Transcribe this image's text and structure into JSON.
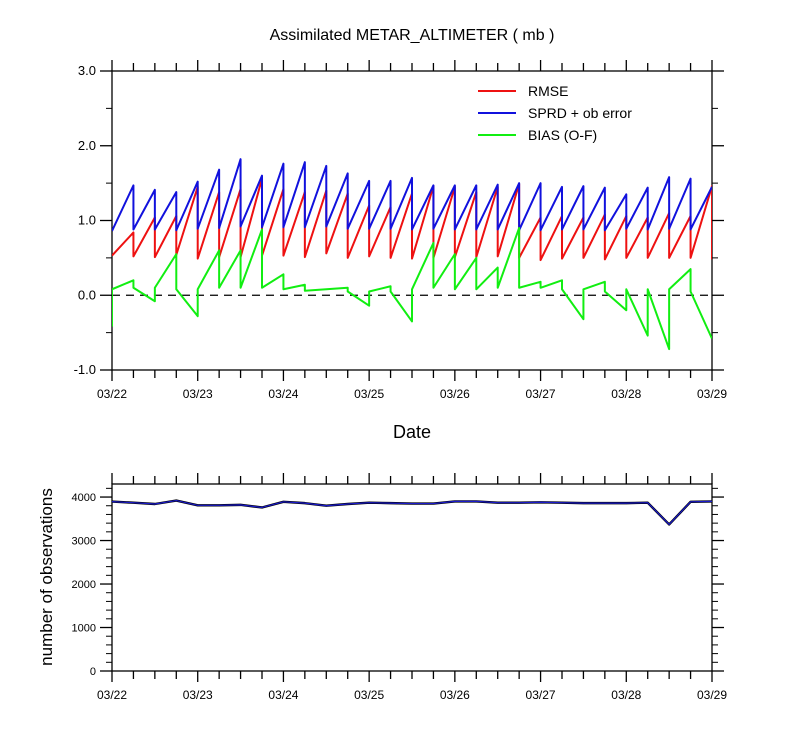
{
  "chart_data": [
    {
      "type": "line",
      "title": "Assimilated METAR_ALTIMETER ( mb )",
      "xlabel": "Date",
      "ylabel": "",
      "x_tick_labels": [
        "03/22",
        "03/23",
        "03/24",
        "03/25",
        "03/26",
        "03/27",
        "03/28",
        "03/29"
      ],
      "y_tick_labels": [
        "3.0",
        "2.0",
        "1.0",
        "0.0",
        "-1.0"
      ],
      "ylim": [
        -1.0,
        3.0
      ],
      "xlim": [
        0,
        7
      ],
      "legend_position": "top-right",
      "zero_line": "dashed",
      "series": [
        {
          "name": "RMSE",
          "color": "#ee1111",
          "x": [
            0.0,
            0.25,
            0.25,
            0.5,
            0.5,
            0.75,
            0.75,
            1.0,
            1.0,
            1.25,
            1.25,
            1.5,
            1.5,
            1.75,
            1.75,
            2.0,
            2.0,
            2.25,
            2.25,
            2.5,
            2.5,
            2.75,
            2.75,
            3.0,
            3.0,
            3.25,
            3.25,
            3.5,
            3.5,
            3.75,
            3.75,
            4.0,
            4.0,
            4.25,
            4.25,
            4.5,
            4.5,
            4.75,
            4.75,
            5.0,
            5.0,
            5.25,
            5.25,
            5.5,
            5.5,
            5.75,
            5.75,
            6.0,
            6.0,
            6.25,
            6.25,
            6.5,
            6.5,
            6.75,
            6.75,
            7.0,
            7.0
          ],
          "y": [
            0.53,
            0.84,
            0.52,
            1.04,
            0.51,
            1.06,
            0.54,
            1.45,
            0.49,
            1.38,
            0.51,
            1.42,
            0.51,
            1.56,
            0.53,
            1.42,
            0.53,
            1.38,
            0.51,
            1.4,
            0.56,
            1.36,
            0.5,
            1.2,
            0.52,
            1.18,
            0.5,
            1.36,
            0.49,
            1.46,
            0.5,
            1.45,
            0.51,
            1.38,
            0.51,
            1.45,
            0.52,
            1.49,
            0.5,
            1.04,
            0.47,
            1.06,
            0.49,
            1.04,
            0.5,
            1.08,
            0.48,
            1.06,
            0.5,
            1.04,
            0.5,
            1.1,
            0.5,
            1.06,
            0.5,
            1.46,
            0.48
          ]
        },
        {
          "name": "SPRD + ob error",
          "color": "#1111dd",
          "x": [
            0.0,
            0.25,
            0.25,
            0.5,
            0.5,
            0.75,
            0.75,
            1.0,
            1.0,
            1.25,
            1.25,
            1.5,
            1.5,
            1.75,
            1.75,
            2.0,
            2.0,
            2.25,
            2.25,
            2.5,
            2.5,
            2.75,
            2.75,
            3.0,
            3.0,
            3.25,
            3.25,
            3.5,
            3.5,
            3.75,
            3.75,
            4.0,
            4.0,
            4.25,
            4.25,
            4.5,
            4.5,
            4.75,
            4.75,
            5.0,
            5.0,
            5.25,
            5.25,
            5.5,
            5.5,
            5.75,
            5.75,
            6.0,
            6.0,
            6.25,
            6.25,
            6.5,
            6.5,
            6.75,
            6.75,
            7.0
          ],
          "y": [
            0.86,
            1.47,
            0.88,
            1.41,
            0.88,
            1.38,
            0.87,
            1.52,
            0.89,
            1.68,
            0.9,
            1.82,
            0.92,
            1.6,
            0.91,
            1.76,
            0.91,
            1.78,
            0.91,
            1.73,
            0.92,
            1.63,
            0.89,
            1.53,
            0.89,
            1.53,
            0.89,
            1.57,
            0.88,
            1.47,
            0.89,
            1.47,
            0.88,
            1.47,
            0.88,
            1.48,
            0.88,
            1.5,
            0.87,
            1.5,
            0.87,
            1.45,
            0.88,
            1.46,
            0.88,
            1.44,
            0.87,
            1.35,
            0.89,
            1.44,
            0.88,
            1.58,
            0.89,
            1.56,
            0.88,
            1.45
          ]
        },
        {
          "name": "BIAS (O-F)",
          "color": "#11ee11",
          "x": [
            0.0,
            0.0,
            0.25,
            0.25,
            0.5,
            0.5,
            0.75,
            0.75,
            1.0,
            1.0,
            1.25,
            1.25,
            1.5,
            1.5,
            1.75,
            1.75,
            2.0,
            2.0,
            2.25,
            2.25,
            2.5,
            2.5,
            2.75,
            2.75,
            3.0,
            3.0,
            3.25,
            3.25,
            3.5,
            3.5,
            3.75,
            3.75,
            4.0,
            4.0,
            4.25,
            4.25,
            4.5,
            4.5,
            4.75,
            4.75,
            5.0,
            5.0,
            5.25,
            5.25,
            5.5,
            5.5,
            5.75,
            5.75,
            6.0,
            6.0,
            6.25,
            6.25,
            6.5,
            6.5,
            6.75,
            6.75,
            7.0
          ],
          "y": [
            -0.42,
            0.08,
            0.2,
            0.1,
            -0.08,
            0.1,
            0.55,
            0.08,
            -0.28,
            0.08,
            0.6,
            0.1,
            0.6,
            0.1,
            0.88,
            0.1,
            0.28,
            0.08,
            0.14,
            0.06,
            0.08,
            0.08,
            0.1,
            0.05,
            -0.14,
            0.05,
            0.12,
            0.05,
            -0.35,
            0.08,
            0.7,
            0.1,
            0.55,
            0.08,
            0.5,
            0.08,
            0.37,
            0.1,
            0.9,
            0.1,
            0.18,
            0.1,
            0.2,
            0.08,
            -0.32,
            0.08,
            0.18,
            0.05,
            -0.2,
            0.08,
            -0.54,
            0.08,
            -0.72,
            0.08,
            0.35,
            0.05,
            -0.58
          ]
        }
      ]
    },
    {
      "type": "line",
      "title": "",
      "xlabel": "",
      "ylabel": "number of observations",
      "x_tick_labels": [
        "03/22",
        "03/23",
        "03/24",
        "03/25",
        "03/26",
        "03/27",
        "03/28",
        "03/29"
      ],
      "y_tick_labels": [
        "4000",
        "3000",
        "2000",
        "1000",
        "0"
      ],
      "ylim": [
        0,
        4300
      ],
      "xlim": [
        0,
        7
      ],
      "series": [
        {
          "color": "#000000",
          "x": [
            0.0,
            0.25,
            0.5,
            0.75,
            1.0,
            1.25,
            1.5,
            1.75,
            2.0,
            2.25,
            2.5,
            2.75,
            3.0,
            3.25,
            3.5,
            3.75,
            4.0,
            4.25,
            4.5,
            4.75,
            5.0,
            5.25,
            5.5,
            5.75,
            6.0,
            6.25,
            6.5,
            6.75,
            7.0
          ],
          "y": [
            3895,
            3870,
            3840,
            3920,
            3810,
            3810,
            3820,
            3760,
            3890,
            3860,
            3800,
            3840,
            3870,
            3860,
            3850,
            3850,
            3900,
            3900,
            3870,
            3870,
            3880,
            3870,
            3860,
            3860,
            3860,
            3870,
            3370,
            3890,
            3900
          ]
        }
      ]
    }
  ]
}
